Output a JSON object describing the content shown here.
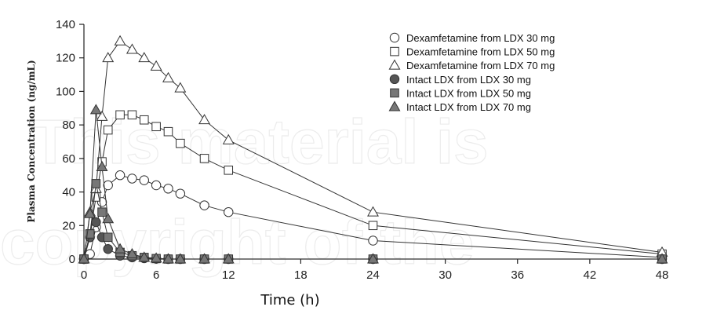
{
  "watermark": {
    "line1": "This material is",
    "line2": "copyright of the"
  },
  "chart_data": {
    "type": "line",
    "title": "",
    "xlabel": "Time (h)",
    "ylabel": "Plasma Concentration (ng/mL)",
    "xlim": [
      0,
      48
    ],
    "ylim": [
      0,
      140
    ],
    "xticks": [
      0,
      6,
      12,
      18,
      24,
      30,
      36,
      42,
      48
    ],
    "yticks": [
      0,
      20,
      40,
      60,
      80,
      100,
      120,
      140
    ],
    "grid": false,
    "legend_position": "top-right",
    "series": [
      {
        "name": "Dexamfetamine from LDX 30 mg",
        "marker": "circle",
        "fill": "#ffffff",
        "x": [
          0,
          0.5,
          1,
          1.5,
          2,
          3,
          4,
          5,
          6,
          7,
          8,
          10,
          12,
          24,
          48
        ],
        "y": [
          0,
          3,
          19,
          34,
          44,
          50,
          48,
          47,
          44,
          42,
          39,
          32,
          28,
          11,
          1
        ]
      },
      {
        "name": "Dexamfetamine from LDX 50 mg",
        "marker": "square",
        "fill": "#ffffff",
        "x": [
          0,
          0.5,
          1,
          1.5,
          2,
          3,
          4,
          5,
          6,
          7,
          8,
          10,
          12,
          24,
          48
        ],
        "y": [
          0,
          15,
          37,
          58,
          77,
          86,
          86,
          83,
          79,
          76,
          69,
          60,
          53,
          20,
          3
        ]
      },
      {
        "name": "Dexamfetamine from LDX 70 mg",
        "marker": "triangle",
        "fill": "#ffffff",
        "x": [
          0,
          0.5,
          1,
          1.5,
          2,
          3,
          4,
          5,
          6,
          7,
          8,
          10,
          12,
          24,
          48
        ],
        "y": [
          0,
          28,
          42,
          85,
          120,
          130,
          125,
          120,
          115,
          108,
          102,
          83,
          71,
          28,
          4
        ]
      },
      {
        "name": "Intact LDX from LDX 30 mg",
        "marker": "circle",
        "fill": "#555555",
        "x": [
          0,
          0.5,
          1,
          1.5,
          2,
          3,
          4,
          5,
          6,
          7,
          8,
          10,
          12,
          24,
          48
        ],
        "y": [
          0,
          13,
          22,
          13,
          6,
          2,
          1,
          0.5,
          0.2,
          0,
          0,
          0,
          0,
          0,
          0
        ]
      },
      {
        "name": "Intact LDX from LDX 50 mg",
        "marker": "square",
        "fill": "#777777",
        "x": [
          0,
          0.5,
          1,
          1.5,
          2,
          3,
          4,
          5,
          6,
          7,
          8,
          10,
          12,
          24,
          48
        ],
        "y": [
          0,
          15,
          45,
          28,
          13,
          4,
          2,
          1,
          0.3,
          0,
          0,
          0,
          0,
          0,
          0
        ]
      },
      {
        "name": "Intact LDX from LDX 70 mg",
        "marker": "triangle",
        "fill": "#777777",
        "x": [
          0,
          0.5,
          1,
          1.5,
          2,
          3,
          4,
          5,
          6,
          7,
          8,
          10,
          12,
          24,
          48
        ],
        "y": [
          0,
          27,
          89,
          55,
          24,
          6,
          3,
          1,
          0.5,
          0,
          0,
          0,
          0,
          0,
          0
        ]
      }
    ]
  }
}
